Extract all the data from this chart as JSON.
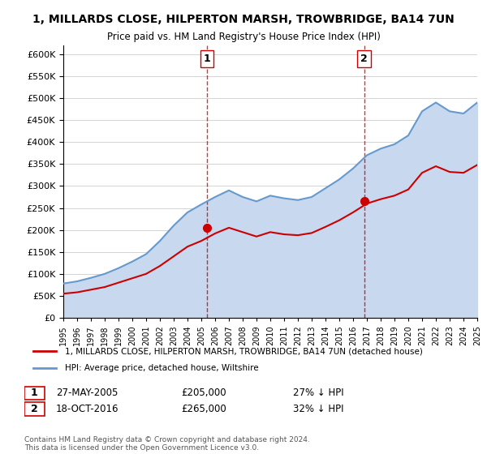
{
  "title": "1, MILLARDS CLOSE, HILPERTON MARSH, TROWBRIDGE, BA14 7UN",
  "subtitle": "Price paid vs. HM Land Registry's House Price Index (HPI)",
  "ylim": [
    0,
    620000
  ],
  "yticks": [
    0,
    50000,
    100000,
    150000,
    200000,
    250000,
    300000,
    350000,
    400000,
    450000,
    500000,
    550000,
    600000
  ],
  "sale1_date": "27-MAY-2005",
  "sale1_price": 205000,
  "sale1_label": "1",
  "sale1_x": 2005.4,
  "sale2_date": "18-OCT-2016",
  "sale2_price": 265000,
  "sale2_label": "2",
  "sale2_x": 2016.8,
  "red_line_color": "#cc0000",
  "blue_line_color": "#6699cc",
  "blue_fill_color": "#c8d8ee",
  "vline_color": "#cc0000",
  "legend_label_red": "1, MILLARDS CLOSE, HILPERTON MARSH, TROWBRIDGE, BA14 7UN (detached house)",
  "legend_label_blue": "HPI: Average price, detached house, Wiltshire",
  "footer": "Contains HM Land Registry data © Crown copyright and database right 2024.\nThis data is licensed under the Open Government Licence v3.0.",
  "xmin": 1995,
  "xmax": 2025,
  "hpi_years": [
    1995,
    1996,
    1997,
    1998,
    1999,
    2000,
    2001,
    2002,
    2003,
    2004,
    2005,
    2006,
    2007,
    2008,
    2009,
    2010,
    2011,
    2012,
    2013,
    2014,
    2015,
    2016,
    2017,
    2018,
    2019,
    2020,
    2021,
    2022,
    2023,
    2024,
    2025
  ],
  "hpi_values": [
    78000,
    83000,
    91000,
    100000,
    113000,
    128000,
    145000,
    175000,
    210000,
    240000,
    258000,
    275000,
    290000,
    275000,
    265000,
    278000,
    272000,
    268000,
    275000,
    295000,
    315000,
    340000,
    370000,
    385000,
    395000,
    415000,
    470000,
    490000,
    470000,
    465000,
    490000
  ],
  "red_years": [
    1995,
    1996,
    1997,
    1998,
    1999,
    2000,
    2001,
    2002,
    2003,
    2004,
    2005,
    2006,
    2007,
    2008,
    2009,
    2010,
    2011,
    2012,
    2013,
    2014,
    2015,
    2016,
    2017,
    2018,
    2019,
    2020,
    2021,
    2022,
    2023,
    2024,
    2025
  ],
  "red_values": [
    55000,
    58000,
    64000,
    70000,
    80000,
    90000,
    100000,
    118000,
    140000,
    162000,
    175000,
    192000,
    205000,
    195000,
    185000,
    195000,
    190000,
    188000,
    193000,
    207000,
    222000,
    240000,
    260000,
    270000,
    278000,
    292000,
    330000,
    345000,
    332000,
    330000,
    348000
  ]
}
